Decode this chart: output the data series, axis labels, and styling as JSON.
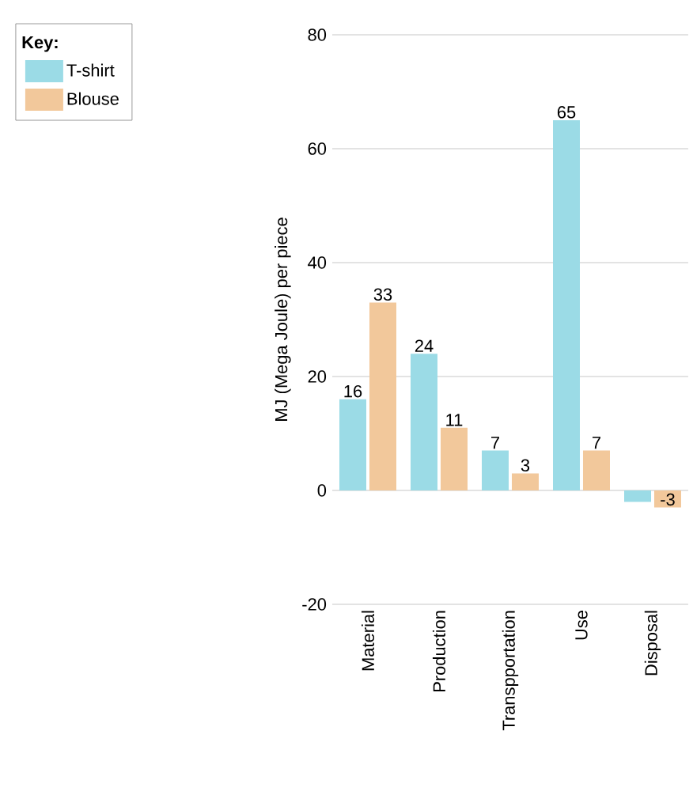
{
  "chart_data": {
    "type": "bar",
    "ylabel": "MJ (Mega Joule) per piece",
    "legend_title": "Key:",
    "categories": [
      "Material",
      "Production",
      "Transpportation",
      "Use",
      "Disposal"
    ],
    "series": [
      {
        "name": "T-shirt",
        "color": "#9bdbe6",
        "values": [
          16,
          24,
          7,
          65,
          -2
        ],
        "value_labels": [
          "16",
          "24",
          "7",
          "65",
          null
        ]
      },
      {
        "name": "Blouse",
        "color": "#f2c89b",
        "values": [
          33,
          11,
          3,
          7,
          -3
        ],
        "value_labels": [
          "33",
          "11",
          "3",
          "7",
          "-3"
        ]
      }
    ],
    "ylim": [
      -20,
      80
    ],
    "yticks": [
      -20,
      0,
      20,
      40,
      60,
      80
    ],
    "grid": "y",
    "legend": "top left"
  }
}
